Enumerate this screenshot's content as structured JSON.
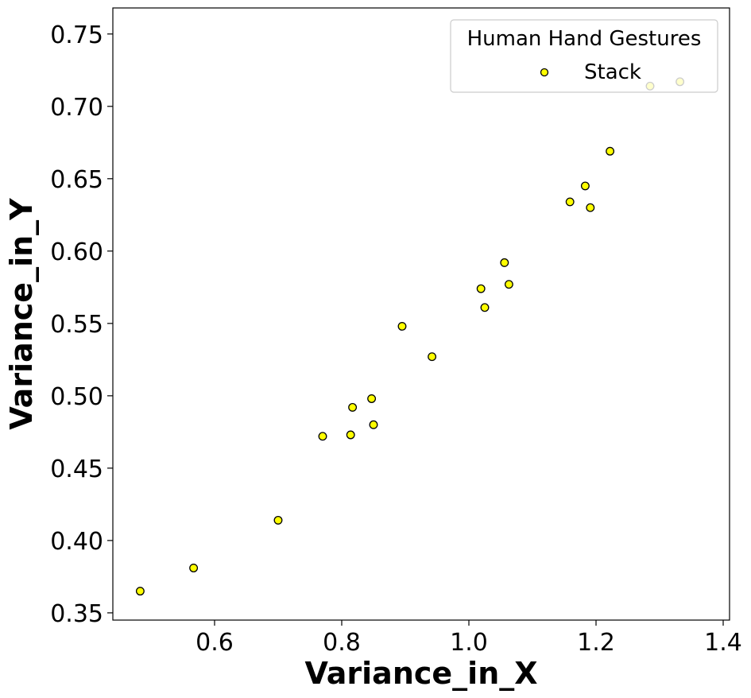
{
  "chart_data": {
    "type": "scatter",
    "xlabel": "Variance_in_X",
    "ylabel": "Variance_in_Y",
    "xlim": [
      0.44,
      1.41
    ],
    "ylim": [
      0.345,
      0.768
    ],
    "xticks": [
      0.6,
      0.8,
      1.0,
      1.2,
      1.4
    ],
    "xtick_labels": [
      "0.6",
      "0.8",
      "1.0",
      "1.2",
      "1.4"
    ],
    "yticks": [
      0.35,
      0.4,
      0.45,
      0.5,
      0.55,
      0.6,
      0.65,
      0.7,
      0.75
    ],
    "ytick_labels": [
      "0.35",
      "0.40",
      "0.45",
      "0.50",
      "0.55",
      "0.60",
      "0.65",
      "0.70",
      "0.75"
    ],
    "grid": false,
    "legend": {
      "title": "Human Hand Gestures",
      "placement": "top-right"
    },
    "series": [
      {
        "name": "Stack",
        "color": "#ffff00",
        "edge_color": "#000000",
        "points": [
          [
            0.483,
            0.365
          ],
          [
            0.567,
            0.381
          ],
          [
            0.7,
            0.414
          ],
          [
            0.77,
            0.472
          ],
          [
            0.814,
            0.473
          ],
          [
            0.817,
            0.492
          ],
          [
            0.847,
            0.498
          ],
          [
            0.85,
            0.48
          ],
          [
            0.895,
            0.548
          ],
          [
            0.942,
            0.527
          ],
          [
            1.019,
            0.574
          ],
          [
            1.025,
            0.561
          ],
          [
            1.056,
            0.592
          ],
          [
            1.063,
            0.577
          ],
          [
            1.159,
            0.634
          ],
          [
            1.183,
            0.645
          ],
          [
            1.191,
            0.63
          ],
          [
            1.222,
            0.669
          ],
          [
            1.285,
            0.714
          ],
          [
            1.332,
            0.717
          ]
        ]
      }
    ]
  }
}
